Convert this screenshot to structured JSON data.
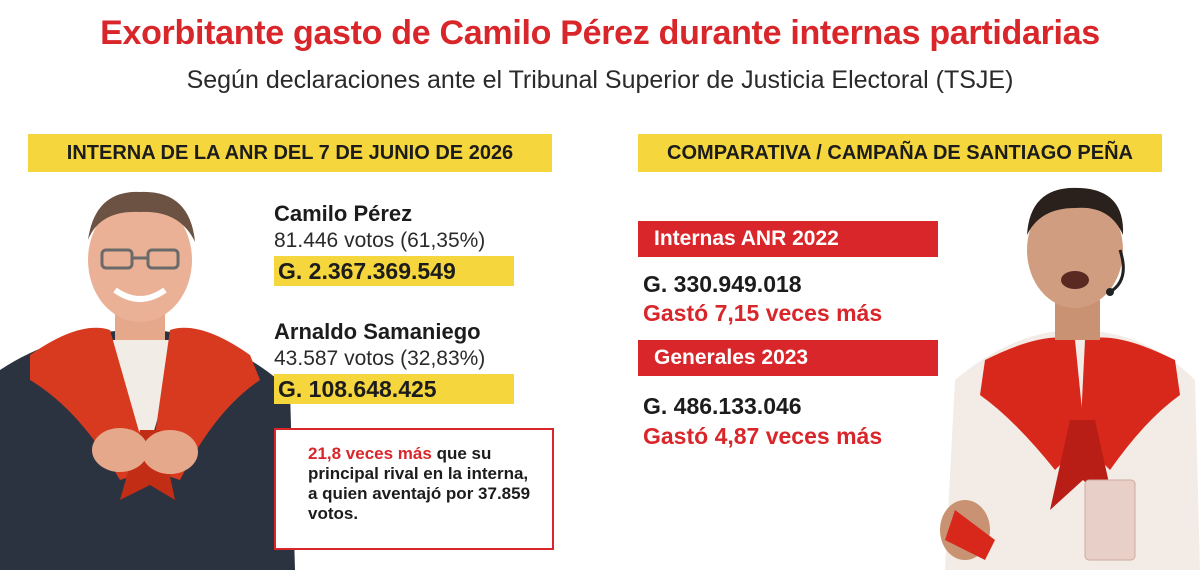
{
  "header": {
    "title": "Exorbitante gasto de Camilo Pérez durante internas partidarias",
    "subtitle": "Según declaraciones ante el Tribunal Superior de Justicia Electoral (TSJE)"
  },
  "left": {
    "band": "INTERNA DE LA ANR DEL 7 DE JUNIO DE 2026",
    "candidates": [
      {
        "name": "Camilo Pérez",
        "votes": "81.446 votos (61,35%)",
        "amount": "G. 2.367.369.549"
      },
      {
        "name": "Arnaldo Samaniego",
        "votes": "43.587 votos (32,83%)",
        "amount": "G. 108.648.425"
      }
    ],
    "note": {
      "highlight": "21,8 veces más",
      "text1": " que su principal rival en la interna, a quien aventajó por ",
      "bold_end": "37.859 votos."
    }
  },
  "right": {
    "band": "COMPARATIVA / CAMPAÑA DE SANTIAGO PEÑA",
    "items": [
      {
        "label": "Internas ANR 2022",
        "amount": "G. 330.949.018",
        "times": "Gastó 7,15 veces más"
      },
      {
        "label": "Generales 2023",
        "amount": "G. 486.133.046",
        "times": "Gastó 4,87 veces más"
      }
    ]
  },
  "colors": {
    "accent_red": "#d9262a",
    "accent_yellow": "#f5d63c"
  },
  "photos": {
    "left": "photo-camilo-perez",
    "right": "photo-santiago-pena"
  }
}
